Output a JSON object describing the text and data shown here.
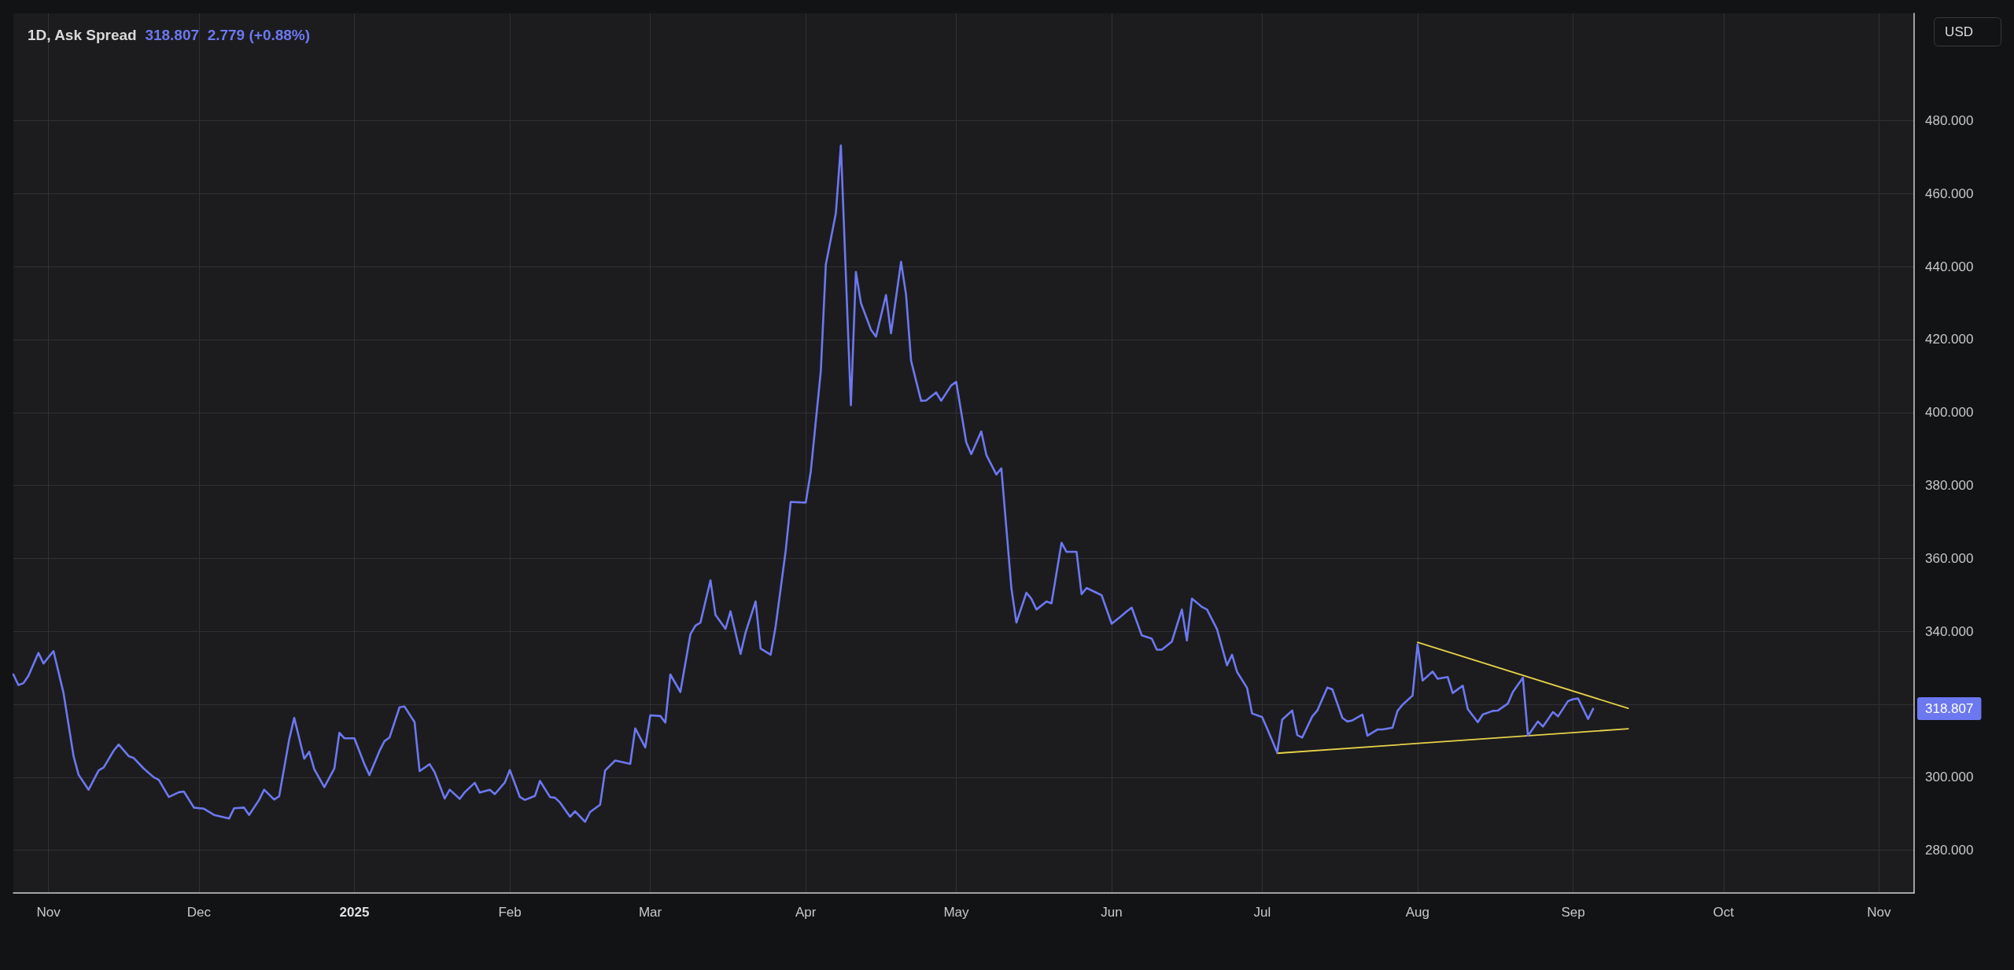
{
  "chart_data": {
    "type": "line",
    "title": "1D, Ask Spread",
    "subtitle": "318.807  2.779 (+0.88%)",
    "ylabel": "USD",
    "xlim": [
      "2024-10-25",
      "2025-11-08"
    ],
    "xticks": [
      {
        "value": "2024-11-01",
        "label": "Nov"
      },
      {
        "value": "2024-12-01",
        "label": "Dec"
      },
      {
        "value": "2025-01-01",
        "label": "2025"
      },
      {
        "value": "2025-02-01",
        "label": "Feb"
      },
      {
        "value": "2025-03-01",
        "label": "Mar"
      },
      {
        "value": "2025-04-01",
        "label": "Apr"
      },
      {
        "value": "2025-05-01",
        "label": "May"
      },
      {
        "value": "2025-06-01",
        "label": "Jun"
      },
      {
        "value": "2025-07-01",
        "label": "Jul"
      },
      {
        "value": "2025-08-01",
        "label": "Aug"
      },
      {
        "value": "2025-09-01",
        "label": "Sep"
      },
      {
        "value": "2025-10-01",
        "label": "Oct"
      },
      {
        "value": "2025-11-01",
        "label": "Nov"
      }
    ],
    "ylim": [
      268.3,
      509.4
    ],
    "yticks": [
      {
        "value": 280,
        "label": "280.000"
      },
      {
        "value": 300,
        "label": "300.000"
      },
      {
        "value": 320,
        "label": null
      },
      {
        "value": 340,
        "label": "340.000"
      },
      {
        "value": 360,
        "label": "360.000"
      },
      {
        "value": 380,
        "label": "380.000"
      },
      {
        "value": 400,
        "label": "400.000"
      },
      {
        "value": 420,
        "label": "420.000"
      },
      {
        "value": 440,
        "label": "440.000"
      },
      {
        "value": 460,
        "label": "460.000"
      },
      {
        "value": 480,
        "label": "480.000"
      }
    ],
    "grid": true,
    "marker": "none",
    "line_style": "solid",
    "annotations": [
      "318.807"
    ],
    "series": [
      {
        "color": "#6c78f0",
        "x": [
          "2024-10-25",
          "2024-10-26",
          "2024-10-27",
          "2024-10-28",
          "2024-10-30",
          "2024-10-31",
          "2024-11-02",
          "2024-11-04",
          "2024-11-06",
          "2024-11-07",
          "2024-11-09",
          "2024-11-11",
          "2024-11-12",
          "2024-11-14",
          "2024-11-15",
          "2024-11-17",
          "2024-11-18",
          "2024-11-20",
          "2024-11-22",
          "2024-11-23",
          "2024-11-25",
          "2024-11-27",
          "2024-11-28",
          "2024-11-30",
          "2024-12-02",
          "2024-12-04",
          "2024-12-07",
          "2024-12-08",
          "2024-12-10",
          "2024-12-11",
          "2024-12-13",
          "2024-12-14",
          "2024-12-16",
          "2024-12-17",
          "2024-12-19",
          "2024-12-20",
          "2024-12-22",
          "2024-12-23",
          "2024-12-24",
          "2024-12-26",
          "2024-12-28",
          "2024-12-29",
          "2024-12-30",
          "2025-01-01",
          "2025-01-03",
          "2025-01-04",
          "2025-01-06",
          "2025-01-07",
          "2025-01-08",
          "2025-01-10",
          "2025-01-11",
          "2025-01-13",
          "2025-01-14",
          "2025-01-16",
          "2025-01-17",
          "2025-01-19",
          "2025-01-20",
          "2025-01-22",
          "2025-01-23",
          "2025-01-25",
          "2025-01-26",
          "2025-01-28",
          "2025-01-29",
          "2025-01-31",
          "2025-02-01",
          "2025-02-03",
          "2025-02-04",
          "2025-02-06",
          "2025-02-07",
          "2025-02-09",
          "2025-02-10",
          "2025-02-11",
          "2025-02-13",
          "2025-02-14",
          "2025-02-16",
          "2025-02-17",
          "2025-02-19",
          "2025-02-20",
          "2025-02-22",
          "2025-02-25",
          "2025-02-26",
          "2025-02-28",
          "2025-03-01",
          "2025-03-03",
          "2025-03-04",
          "2025-03-05",
          "2025-03-07",
          "2025-03-09",
          "2025-03-10",
          "2025-03-11",
          "2025-03-13",
          "2025-03-14",
          "2025-03-16",
          "2025-03-17",
          "2025-03-19",
          "2025-03-20",
          "2025-03-22",
          "2025-03-23",
          "2025-03-25",
          "2025-03-26",
          "2025-03-28",
          "2025-03-29",
          "2025-04-01",
          "2025-04-02",
          "2025-04-04",
          "2025-04-05",
          "2025-04-07",
          "2025-04-08",
          "2025-04-10",
          "2025-04-11",
          "2025-04-12",
          "2025-04-14",
          "2025-04-15",
          "2025-04-17",
          "2025-04-18",
          "2025-04-20",
          "2025-04-21",
          "2025-04-22",
          "2025-04-24",
          "2025-04-25",
          "2025-04-27",
          "2025-04-28",
          "2025-04-30",
          "2025-05-01",
          "2025-05-03",
          "2025-05-04",
          "2025-05-06",
          "2025-05-07",
          "2025-05-09",
          "2025-05-10",
          "2025-05-12",
          "2025-05-13",
          "2025-05-15",
          "2025-05-16",
          "2025-05-17",
          "2025-05-19",
          "2025-05-20",
          "2025-05-22",
          "2025-05-23",
          "2025-05-25",
          "2025-05-26",
          "2025-05-27",
          "2025-05-30",
          "2025-06-01",
          "2025-06-03",
          "2025-06-04",
          "2025-06-05",
          "2025-06-07",
          "2025-06-09",
          "2025-06-10",
          "2025-06-11",
          "2025-06-13",
          "2025-06-15",
          "2025-06-16",
          "2025-06-17",
          "2025-06-19",
          "2025-06-20",
          "2025-06-22",
          "2025-06-24",
          "2025-06-25",
          "2025-06-26",
          "2025-06-28",
          "2025-06-29",
          "2025-07-01",
          "2025-07-02",
          "2025-07-04",
          "2025-07-05",
          "2025-07-07",
          "2025-07-08",
          "2025-07-09",
          "2025-07-11",
          "2025-07-12",
          "2025-07-14",
          "2025-07-15",
          "2025-07-17",
          "2025-07-18",
          "2025-07-19",
          "2025-07-21",
          "2025-07-22",
          "2025-07-24",
          "2025-07-25",
          "2025-07-27",
          "2025-07-28",
          "2025-07-29",
          "2025-07-31",
          "2025-08-01",
          "2025-08-02",
          "2025-08-04",
          "2025-08-05",
          "2025-08-07",
          "2025-08-08",
          "2025-08-10",
          "2025-08-11",
          "2025-08-13",
          "2025-08-14",
          "2025-08-16",
          "2025-08-17",
          "2025-08-19",
          "2025-08-20",
          "2025-08-22",
          "2025-08-23",
          "2025-08-25",
          "2025-08-26",
          "2025-08-28",
          "2025-08-29",
          "2025-08-31",
          "2025-09-01",
          "2025-09-02",
          "2025-09-04",
          "2025-09-05"
        ],
        "values": [
          328.2,
          325.3,
          325.8,
          327.8,
          334.1,
          331.2,
          334.6,
          323.1,
          305.8,
          300.7,
          296.6,
          301.9,
          302.7,
          307.3,
          309.0,
          305.8,
          305.3,
          302.4,
          300.0,
          299.3,
          294.6,
          295.9,
          296.1,
          291.7,
          291.4,
          289.7,
          288.7,
          291.5,
          291.7,
          289.7,
          293.8,
          296.6,
          293.9,
          294.8,
          310.4,
          316.3,
          305.1,
          307.0,
          302.2,
          297.3,
          302.4,
          312.2,
          310.7,
          310.7,
          303.6,
          300.6,
          307.2,
          309.9,
          310.9,
          319.2,
          319.4,
          315.1,
          301.7,
          303.6,
          301.4,
          294.2,
          296.6,
          294.1,
          295.9,
          298.5,
          295.8,
          296.6,
          295.4,
          298.6,
          302.0,
          294.6,
          293.8,
          294.9,
          299.0,
          294.6,
          294.4,
          293.1,
          289.2,
          290.7,
          287.8,
          290.5,
          292.5,
          301.9,
          304.6,
          303.7,
          313.4,
          308.2,
          317.0,
          316.8,
          315.0,
          328.2,
          323.4,
          339.2,
          341.6,
          342.4,
          354.0,
          344.5,
          340.7,
          345.5,
          333.8,
          339.7,
          348.2,
          335.3,
          333.6,
          341.4,
          362.1,
          375.5,
          375.3,
          383.8,
          411.3,
          440.5,
          454.6,
          473.2,
          402.0,
          438.5,
          430.0,
          422.7,
          420.8,
          432.2,
          421.7,
          441.3,
          432.3,
          414.2,
          403.2,
          403.3,
          405.5,
          403.2,
          407.4,
          408.4,
          391.8,
          388.6,
          394.8,
          388.4,
          383.0,
          384.7,
          351.9,
          342.4,
          350.6,
          348.9,
          346.0,
          348.2,
          347.7,
          364.3,
          361.8,
          361.8,
          350.2,
          351.9,
          349.9,
          342.1,
          344.3,
          345.5,
          346.5,
          338.9,
          338.0,
          335.0,
          335.0,
          337.2,
          346.0,
          337.5,
          349.0,
          346.7,
          346.0,
          340.6,
          330.7,
          333.6,
          328.9,
          324.5,
          317.5,
          316.5,
          313.4,
          306.8,
          315.8,
          318.3,
          311.6,
          310.9,
          316.7,
          318.3,
          324.6,
          324.1,
          316.3,
          315.3,
          315.6,
          317.2,
          311.4,
          313.1,
          313.1,
          313.6,
          318.2,
          319.9,
          322.4,
          336.5,
          326.5,
          329.0,
          327.0,
          327.5,
          323.1,
          325.1,
          318.7,
          315.1,
          317.2,
          318.2,
          318.3,
          320.2,
          323.4,
          327.3,
          311.4,
          315.3,
          313.9,
          317.9,
          316.7,
          320.9,
          321.4,
          321.6,
          316.0,
          318.8
        ]
      },
      {
        "color": "#e6d14a",
        "x": [
          "2025-08-01",
          "2025-09-12"
        ],
        "values": [
          337.0,
          318.9
        ]
      },
      {
        "color": "#e6d14a",
        "x": [
          "2025-07-04",
          "2025-09-12"
        ],
        "values": [
          306.6,
          313.3
        ]
      }
    ]
  }
}
